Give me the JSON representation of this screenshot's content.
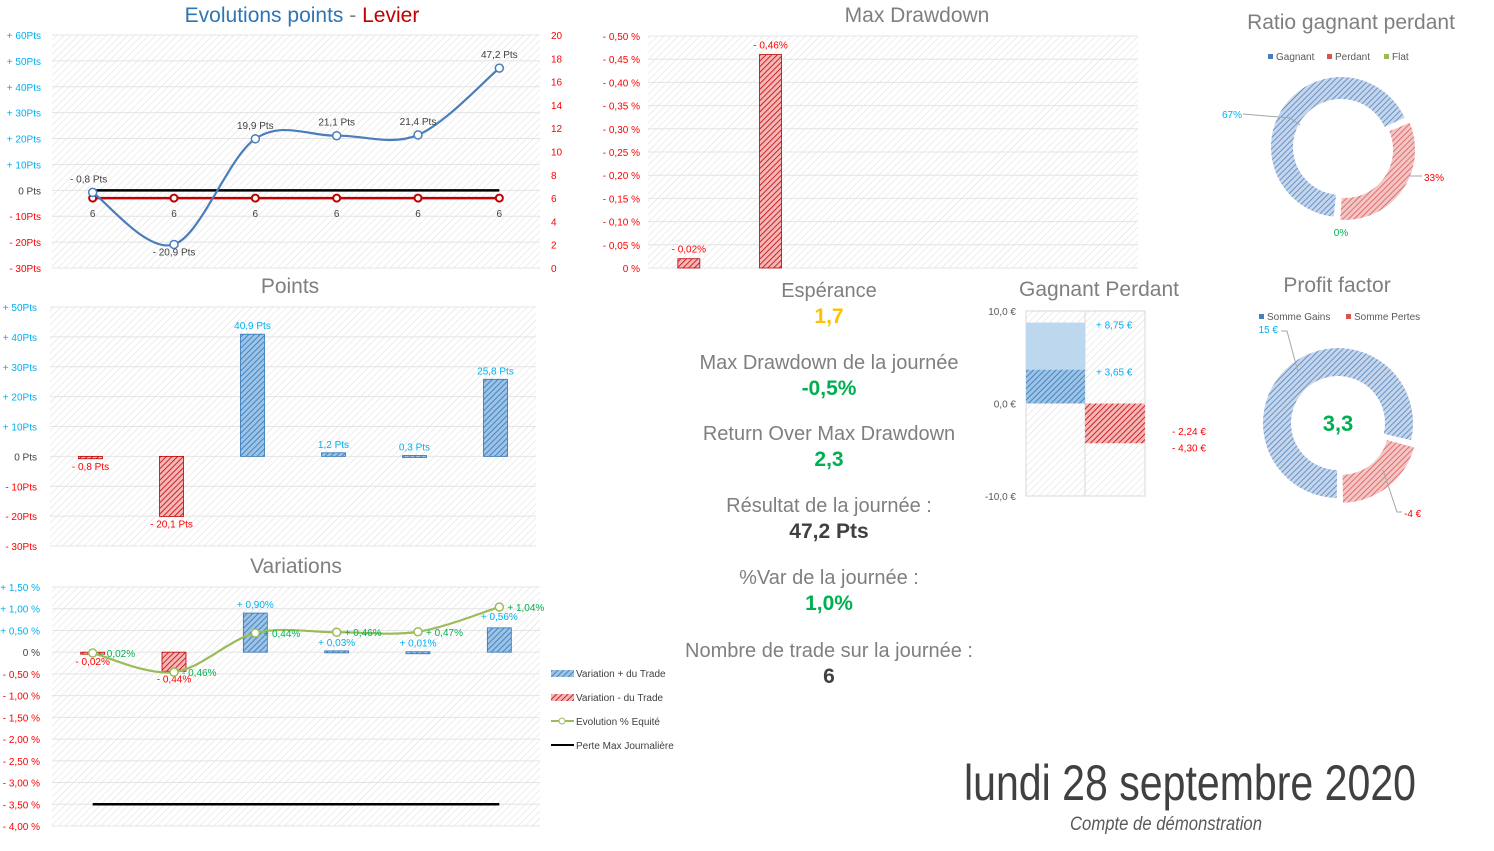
{
  "colors": {
    "blue": "#4a7ebb",
    "cyan": "#00b0f0",
    "red": "#ff0000",
    "darkred": "#c00000",
    "green": "#00b050",
    "olive": "#9bbb59",
    "yellow": "#ffc000",
    "gray": "#7f7f7f",
    "dark": "#404040"
  },
  "chart_data": [
    {
      "id": "evolution",
      "type": "line",
      "title_part1": "Evolutions points",
      "title_sep": " - ",
      "title_part2": "Levier",
      "categories": [
        "6",
        "6",
        "6",
        "6",
        "6",
        "6"
      ],
      "ylim": [
        -30,
        60
      ],
      "y2lim": [
        0,
        20
      ],
      "y_ticks": [
        "- 30Pts",
        "- 20Pts",
        "- 10Pts",
        "0 Pts",
        "+ 10Pts",
        "+ 20Pts",
        "+ 30Pts",
        "+ 40Pts",
        "+ 50Pts",
        "+ 60Pts"
      ],
      "y2_ticks": [
        "0",
        "2",
        "4",
        "6",
        "8",
        "10",
        "12",
        "14",
        "16",
        "18",
        "20"
      ],
      "series": [
        {
          "name": "Points",
          "axis": "left",
          "values": [
            -0.8,
            -20.9,
            19.9,
            21.1,
            21.4,
            47.2
          ],
          "labels": [
            "- 0,8 Pts",
            "- 20,9 Pts",
            "19,9 Pts",
            "21,1 Pts",
            "21,4 Pts",
            "47,2 Pts"
          ]
        },
        {
          "name": "Levier",
          "axis": "right",
          "values": [
            6,
            6,
            6,
            6,
            6,
            6
          ]
        },
        {
          "name": "Zero",
          "axis": "left",
          "values": [
            0,
            0,
            0,
            0,
            0,
            0
          ]
        }
      ]
    },
    {
      "id": "points",
      "type": "bar",
      "title": "Points",
      "ylim": [
        -30,
        50
      ],
      "y_ticks": [
        "- 30Pts",
        "- 20Pts",
        "- 10Pts",
        "0 Pts",
        "+ 10Pts",
        "+ 20Pts",
        "+ 30Pts",
        "+ 40Pts",
        "+ 50Pts"
      ],
      "values": [
        -0.8,
        -20.1,
        40.9,
        1.2,
        0.3,
        25.8
      ],
      "labels": [
        "- 0,8 Pts",
        "- 20,1 Pts",
        "40,9 Pts",
        "1,2 Pts",
        "0,3 Pts",
        "25,8 Pts"
      ]
    },
    {
      "id": "variations",
      "type": "bar",
      "title": "Variations",
      "ylim": [
        -4,
        1.5
      ],
      "y_ticks": [
        "- 4,00 %",
        "- 3,50 %",
        "- 3,00 %",
        "- 2,50 %",
        "- 2,00 %",
        "- 1,50 %",
        "- 1,00 %",
        "- 0,50 %",
        "0 %",
        "+ 0,50 %",
        "+ 1,00 %",
        "+ 1,50 %"
      ],
      "bars": [
        -0.02,
        -0.44,
        0.9,
        0.03,
        0.01,
        0.56
      ],
      "bar_labels": [
        "- 0,02%",
        "- 0,44%",
        "+ 0,90%",
        "+ 0,03%",
        "+ 0,01%",
        "+ 0,56%"
      ],
      "equity": [
        -0.02,
        -0.46,
        0.44,
        0.46,
        0.47,
        1.04
      ],
      "equity_labels": [
        "- 0,02%",
        "- 0,46%",
        "+ 0,44%",
        "+ 0,46%",
        "+ 0,47%",
        "+ 1,04%"
      ],
      "max_loss": -3.5,
      "legend": [
        "Variation + du Trade",
        "Variation - du Trade",
        "Evolution % Equité",
        "Perte Max Journalière"
      ]
    },
    {
      "id": "drawdown",
      "type": "bar",
      "title": "Max Drawdown",
      "ylim": [
        0,
        -0.5
      ],
      "y_ticks": [
        "0 %",
        "- 0,05 %",
        "- 0,10 %",
        "- 0,15 %",
        "- 0,20 %",
        "- 0,25 %",
        "- 0,30 %",
        "- 0,35 %",
        "- 0,40 %",
        "- 0,45 %",
        "- 0,50 %"
      ],
      "values": [
        -0.02,
        -0.46
      ],
      "labels": [
        "- 0,02%",
        "- 0,46%"
      ]
    },
    {
      "id": "ratio",
      "type": "pie",
      "title": "Ratio gagnant perdant",
      "legend": [
        "Gagnant",
        "Perdant",
        "Flat"
      ],
      "values": [
        67,
        33,
        0
      ],
      "labels": [
        "67%",
        "33%",
        "0%"
      ]
    },
    {
      "id": "profit_factor",
      "type": "pie",
      "title": "Profit factor",
      "legend": [
        "Somme Gains",
        "Somme Pertes"
      ],
      "values": [
        15,
        4
      ],
      "labels": [
        "15 €",
        "-4 €"
      ],
      "center_value": "3,3"
    },
    {
      "id": "gagnant_perdant",
      "type": "bar",
      "title": "Gagnant Perdant",
      "ylim": [
        -10,
        10
      ],
      "y_ticks": [
        "-10,0 €",
        "0,0 €",
        "10,0 €"
      ],
      "gains": [
        8.75,
        3.65
      ],
      "gain_labels": [
        "+ 8,75 €",
        "+ 3,65 €"
      ],
      "losses": [
        -2.24,
        -4.3
      ],
      "loss_labels": [
        "- 2,24 €",
        "- 4,30 €"
      ]
    }
  ],
  "stats": [
    {
      "label": "Espérance",
      "value": "1,7",
      "color": "#ffc000"
    },
    {
      "label": "Max Drawdown de la journée",
      "value": "-0,5%",
      "color": "#00b050"
    },
    {
      "label": "Return Over Max Drawdown",
      "value": "2,3",
      "color": "#00b050"
    },
    {
      "label": "Résultat de la journée :",
      "value": "47,2 Pts",
      "color": "#404040"
    },
    {
      "label": "%Var de la journée :",
      "value": "1,0%",
      "color": "#00b050"
    },
    {
      "label": "Nombre de trade sur la journée :",
      "value": "6",
      "color": "#404040"
    }
  ],
  "footer": {
    "date": "lundi 28 septembre 2020",
    "account": "Compte de démonstration"
  }
}
